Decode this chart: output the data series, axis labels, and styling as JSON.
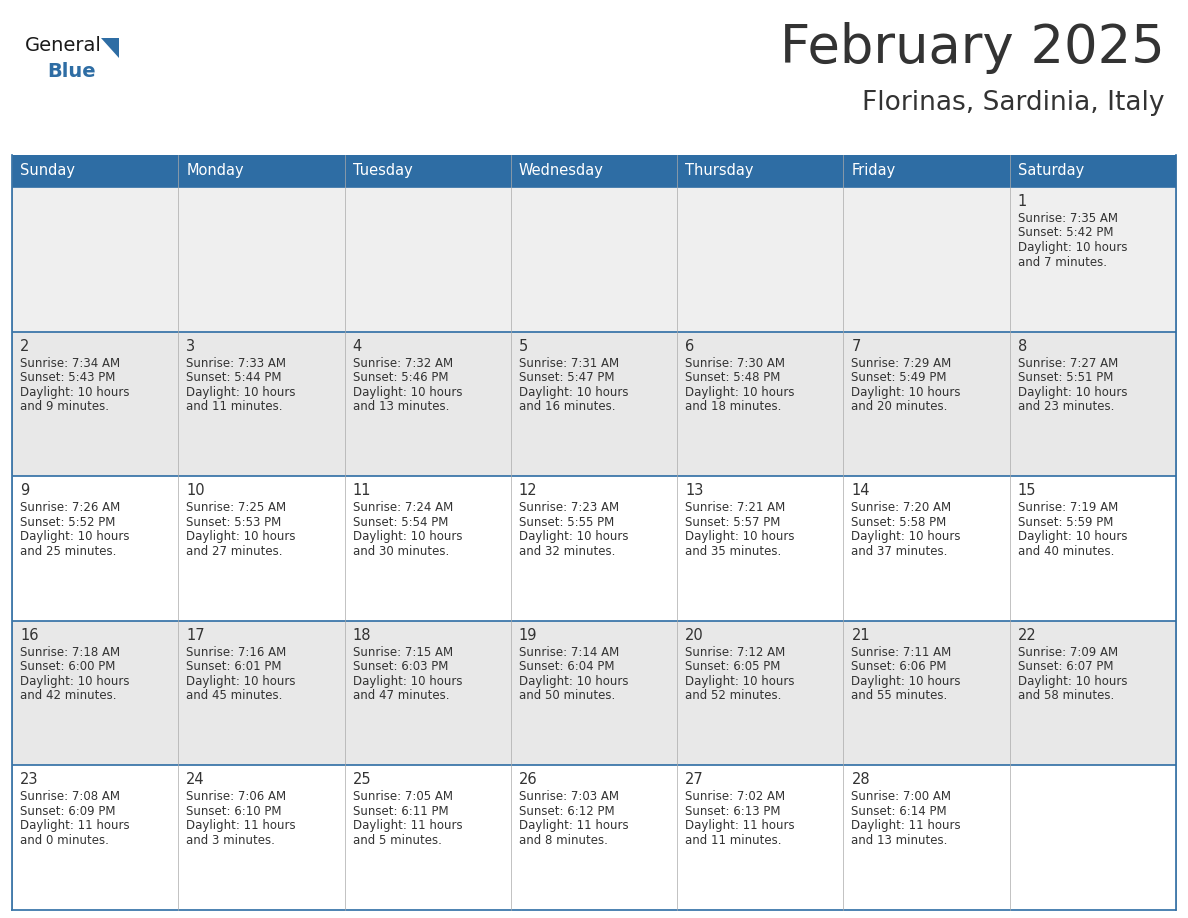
{
  "title": "February 2025",
  "subtitle": "Florinas, Sardinia, Italy",
  "header_bg": "#2E6DA4",
  "header_text_color": "#FFFFFF",
  "cell_bg_row0": "#EFEFEF",
  "cell_bg_row1": "#E8E8E8",
  "cell_bg_row2": "#FFFFFF",
  "cell_bg_row3": "#E8E8E8",
  "cell_bg_row4": "#FFFFFF",
  "border_color": "#2E6DA4",
  "day_names": [
    "Sunday",
    "Monday",
    "Tuesday",
    "Wednesday",
    "Thursday",
    "Friday",
    "Saturday"
  ],
  "days": [
    {
      "day": 1,
      "col": 6,
      "row": 0,
      "sunrise": "7:35 AM",
      "sunset": "5:42 PM",
      "daylight": "10 hours and 7 minutes."
    },
    {
      "day": 2,
      "col": 0,
      "row": 1,
      "sunrise": "7:34 AM",
      "sunset": "5:43 PM",
      "daylight": "10 hours and 9 minutes."
    },
    {
      "day": 3,
      "col": 1,
      "row": 1,
      "sunrise": "7:33 AM",
      "sunset": "5:44 PM",
      "daylight": "10 hours and 11 minutes."
    },
    {
      "day": 4,
      "col": 2,
      "row": 1,
      "sunrise": "7:32 AM",
      "sunset": "5:46 PM",
      "daylight": "10 hours and 13 minutes."
    },
    {
      "day": 5,
      "col": 3,
      "row": 1,
      "sunrise": "7:31 AM",
      "sunset": "5:47 PM",
      "daylight": "10 hours and 16 minutes."
    },
    {
      "day": 6,
      "col": 4,
      "row": 1,
      "sunrise": "7:30 AM",
      "sunset": "5:48 PM",
      "daylight": "10 hours and 18 minutes."
    },
    {
      "day": 7,
      "col": 5,
      "row": 1,
      "sunrise": "7:29 AM",
      "sunset": "5:49 PM",
      "daylight": "10 hours and 20 minutes."
    },
    {
      "day": 8,
      "col": 6,
      "row": 1,
      "sunrise": "7:27 AM",
      "sunset": "5:51 PM",
      "daylight": "10 hours and 23 minutes."
    },
    {
      "day": 9,
      "col": 0,
      "row": 2,
      "sunrise": "7:26 AM",
      "sunset": "5:52 PM",
      "daylight": "10 hours and 25 minutes."
    },
    {
      "day": 10,
      "col": 1,
      "row": 2,
      "sunrise": "7:25 AM",
      "sunset": "5:53 PM",
      "daylight": "10 hours and 27 minutes."
    },
    {
      "day": 11,
      "col": 2,
      "row": 2,
      "sunrise": "7:24 AM",
      "sunset": "5:54 PM",
      "daylight": "10 hours and 30 minutes."
    },
    {
      "day": 12,
      "col": 3,
      "row": 2,
      "sunrise": "7:23 AM",
      "sunset": "5:55 PM",
      "daylight": "10 hours and 32 minutes."
    },
    {
      "day": 13,
      "col": 4,
      "row": 2,
      "sunrise": "7:21 AM",
      "sunset": "5:57 PM",
      "daylight": "10 hours and 35 minutes."
    },
    {
      "day": 14,
      "col": 5,
      "row": 2,
      "sunrise": "7:20 AM",
      "sunset": "5:58 PM",
      "daylight": "10 hours and 37 minutes."
    },
    {
      "day": 15,
      "col": 6,
      "row": 2,
      "sunrise": "7:19 AM",
      "sunset": "5:59 PM",
      "daylight": "10 hours and 40 minutes."
    },
    {
      "day": 16,
      "col": 0,
      "row": 3,
      "sunrise": "7:18 AM",
      "sunset": "6:00 PM",
      "daylight": "10 hours and 42 minutes."
    },
    {
      "day": 17,
      "col": 1,
      "row": 3,
      "sunrise": "7:16 AM",
      "sunset": "6:01 PM",
      "daylight": "10 hours and 45 minutes."
    },
    {
      "day": 18,
      "col": 2,
      "row": 3,
      "sunrise": "7:15 AM",
      "sunset": "6:03 PM",
      "daylight": "10 hours and 47 minutes."
    },
    {
      "day": 19,
      "col": 3,
      "row": 3,
      "sunrise": "7:14 AM",
      "sunset": "6:04 PM",
      "daylight": "10 hours and 50 minutes."
    },
    {
      "day": 20,
      "col": 4,
      "row": 3,
      "sunrise": "7:12 AM",
      "sunset": "6:05 PM",
      "daylight": "10 hours and 52 minutes."
    },
    {
      "day": 21,
      "col": 5,
      "row": 3,
      "sunrise": "7:11 AM",
      "sunset": "6:06 PM",
      "daylight": "10 hours and 55 minutes."
    },
    {
      "day": 22,
      "col": 6,
      "row": 3,
      "sunrise": "7:09 AM",
      "sunset": "6:07 PM",
      "daylight": "10 hours and 58 minutes."
    },
    {
      "day": 23,
      "col": 0,
      "row": 4,
      "sunrise": "7:08 AM",
      "sunset": "6:09 PM",
      "daylight": "11 hours and 0 minutes."
    },
    {
      "day": 24,
      "col": 1,
      "row": 4,
      "sunrise": "7:06 AM",
      "sunset": "6:10 PM",
      "daylight": "11 hours and 3 minutes."
    },
    {
      "day": 25,
      "col": 2,
      "row": 4,
      "sunrise": "7:05 AM",
      "sunset": "6:11 PM",
      "daylight": "11 hours and 5 minutes."
    },
    {
      "day": 26,
      "col": 3,
      "row": 4,
      "sunrise": "7:03 AM",
      "sunset": "6:12 PM",
      "daylight": "11 hours and 8 minutes."
    },
    {
      "day": 27,
      "col": 4,
      "row": 4,
      "sunrise": "7:02 AM",
      "sunset": "6:13 PM",
      "daylight": "11 hours and 11 minutes."
    },
    {
      "day": 28,
      "col": 5,
      "row": 4,
      "sunrise": "7:00 AM",
      "sunset": "6:14 PM",
      "daylight": "11 hours and 13 minutes."
    }
  ],
  "num_rows": 5,
  "num_cols": 7,
  "logo_general_color": "#1a1a1a",
  "logo_blue_color": "#2E6DA4",
  "text_color": "#333333",
  "cell_bgs": [
    "#EFEFEF",
    "#E8E8E8",
    "#FFFFFF",
    "#E8E8E8",
    "#FFFFFF"
  ]
}
